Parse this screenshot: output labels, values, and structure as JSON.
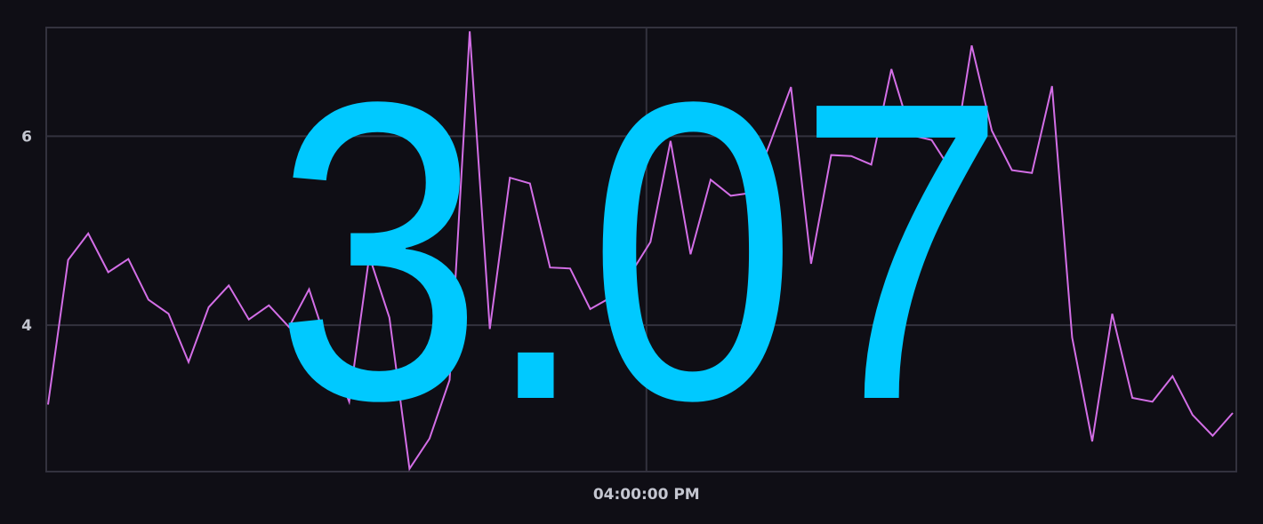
{
  "single_stat": {
    "value": "3.07",
    "color": "#00c9ff"
  },
  "chart_data": {
    "type": "line",
    "title": "",
    "xlabel": "",
    "ylabel": "",
    "ylim": [
      2.45,
      7.15
    ],
    "yticks": [
      {
        "value": 4,
        "label": "4"
      },
      {
        "value": 6,
        "label": "6"
      }
    ],
    "xticks": [
      {
        "index": 29.8,
        "label": "04:00:00 PM"
      }
    ],
    "grid": true,
    "line_color": "#d36ee6",
    "series": [
      {
        "values": [
          3.16,
          4.69,
          4.97,
          4.56,
          4.7,
          4.27,
          4.12,
          3.61,
          4.19,
          4.42,
          4.06,
          4.21,
          3.98,
          4.38,
          3.73,
          3.19,
          4.73,
          4.08,
          2.48,
          2.8,
          3.42,
          7.11,
          3.96,
          5.56,
          5.5,
          4.61,
          4.6,
          4.17,
          4.29,
          4.54,
          4.88,
          5.95,
          4.75,
          5.54,
          5.37,
          5.4,
          5.95,
          6.52,
          4.65,
          5.8,
          5.79,
          5.7,
          6.71,
          6.01,
          5.96,
          5.63,
          6.96,
          6.06,
          5.64,
          5.61,
          6.53,
          3.87,
          2.77,
          4.12,
          3.23,
          3.19,
          3.46,
          3.05,
          2.83,
          3.07
        ]
      }
    ]
  }
}
